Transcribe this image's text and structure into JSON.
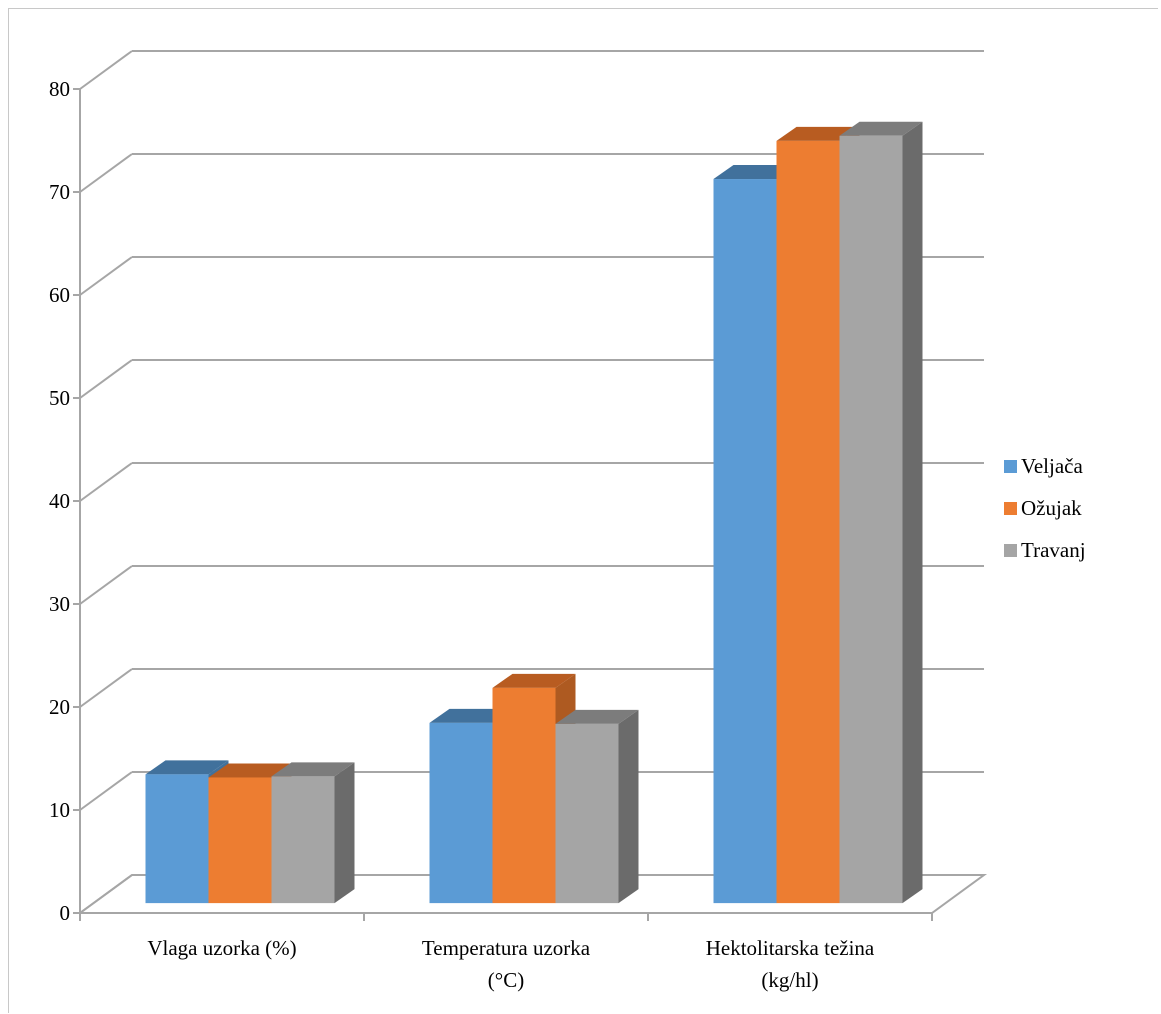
{
  "chart_data": {
    "type": "bar",
    "categories": [
      [
        "Vlaga uzorka (%)"
      ],
      [
        "Temperatura uzorka",
        "(°C)"
      ],
      [
        "Hektolitarska težina",
        "(kg/hl)"
      ]
    ],
    "series": [
      {
        "name": "Veljača",
        "values": [
          12.5,
          17.5,
          70.3
        ],
        "color": "#5b9bd5",
        "top": "#41719c",
        "side": "#41719c"
      },
      {
        "name": "Ožujak",
        "values": [
          12.2,
          20.9,
          74.0
        ],
        "color": "#ed7d31",
        "top": "#b85c21",
        "side": "#ae5a21"
      },
      {
        "name": "Travanj",
        "values": [
          12.3,
          17.4,
          74.5
        ],
        "color": "#a5a5a5",
        "top": "#7c7c7c",
        "side": "#6b6b6b"
      }
    ],
    "ylim": [
      0,
      80
    ],
    "yticks": [
      "0",
      "10",
      "20",
      "30",
      "40",
      "50",
      "60",
      "70",
      "80"
    ],
    "grid": true,
    "legend_position": "right",
    "style": "3d-clustered-column",
    "grid_color": "#a6a6a6"
  }
}
